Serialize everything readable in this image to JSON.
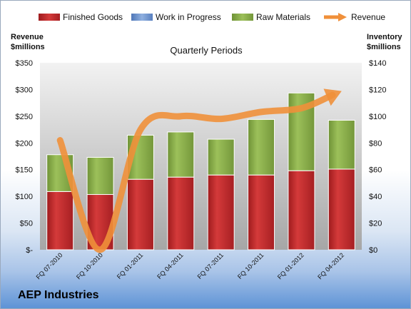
{
  "company": "AEP Industries",
  "chart_data": {
    "type": "bar",
    "subtitle": "Quarterly Periods",
    "categories": [
      "FQ 07-2010",
      "FQ 10-2010",
      "FQ 01-2011",
      "FQ 04-2011",
      "FQ 07-2011",
      "FQ 10-2011",
      "FQ 01-2012",
      "FQ 04-2012"
    ],
    "left_axis": {
      "label_line1": "Revenue",
      "label_line2": "$millions",
      "range": [
        0,
        350
      ],
      "ticks": [
        0,
        50,
        100,
        150,
        200,
        250,
        300,
        350
      ],
      "tick_labels": [
        "$-",
        "$50",
        "$100",
        "$150",
        "$200",
        "$250",
        "$300",
        "$350"
      ]
    },
    "right_axis": {
      "label_line1": "Inventory",
      "label_line2": "$millions",
      "range": [
        0,
        140
      ],
      "ticks": [
        0,
        20,
        40,
        60,
        80,
        100,
        120,
        140
      ],
      "tick_labels": [
        "$0",
        "$20",
        "$40",
        "$60",
        "$80",
        "$100",
        "$120",
        "$140"
      ]
    },
    "series": [
      {
        "name": "Finished Goods",
        "kind": "stacked-bar",
        "axis": "right",
        "color": "#c0282b",
        "values": [
          43.6,
          41.4,
          52.8,
          54.4,
          56.0,
          56.0,
          59.2,
          60.4
        ]
      },
      {
        "name": "Work in Progress",
        "kind": "stacked-bar",
        "axis": "right",
        "color": "#6f93cf",
        "values": [
          0,
          0,
          0,
          0,
          0,
          0,
          0,
          0
        ]
      },
      {
        "name": "Raw Materials",
        "kind": "stacked-bar",
        "axis": "right",
        "color": "#8db04a",
        "values": [
          27.6,
          27.8,
          33.0,
          33.8,
          26.8,
          41.6,
          58.2,
          36.6
        ]
      },
      {
        "name": "Revenue",
        "kind": "line-arrow",
        "axis": "left",
        "color": "#f0903a",
        "values": [
          205,
          0,
          225,
          250,
          245,
          258,
          265,
          297
        ]
      }
    ],
    "legend": "top",
    "grid": false
  }
}
